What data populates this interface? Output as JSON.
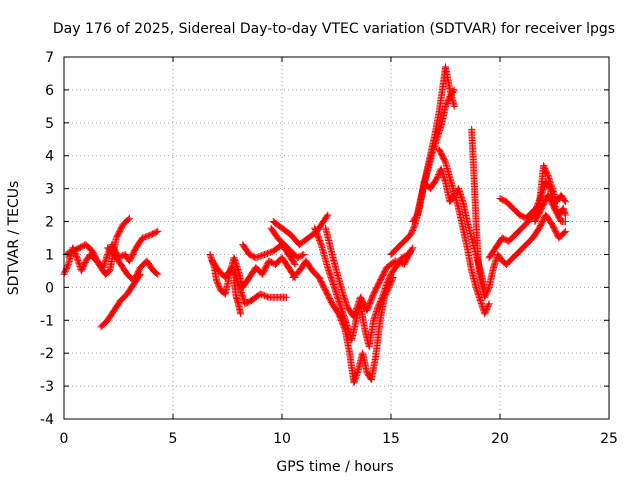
{
  "chart_data": {
    "type": "scatter",
    "title": "Day 176 of 2025, Sidereal Day-to-day VTEC variation (SDTVAR) for receiver lpgs",
    "xlabel": "GPS time / hours",
    "ylabel": "SDTVAR / TECUs",
    "xlim": [
      0,
      25
    ],
    "ylim": [
      -4,
      7
    ],
    "xticks": [
      "0",
      "5",
      "10",
      "15",
      "20",
      "25"
    ],
    "yticks": [
      "-4",
      "-3",
      "-2",
      "-1",
      "0",
      "1",
      "2",
      "3",
      "4",
      "5",
      "6",
      "7"
    ],
    "grid": true,
    "marker": "+",
    "color": "#ff0000",
    "trace_segments": [
      [
        [
          0.0,
          0.4
        ],
        [
          0.2,
          0.7
        ],
        [
          0.4,
          1.2
        ],
        [
          0.6,
          0.9
        ],
        [
          0.8,
          0.5
        ],
        [
          1.0,
          0.8
        ],
        [
          1.2,
          1.0
        ],
        [
          1.5,
          0.8
        ],
        [
          1.8,
          0.6
        ],
        [
          2.0,
          1.0
        ],
        [
          2.2,
          1.3
        ],
        [
          2.5,
          0.9
        ],
        [
          2.8,
          1.0
        ],
        [
          3.0,
          0.8
        ],
        [
          3.3,
          1.2
        ],
        [
          3.6,
          1.5
        ],
        [
          4.0,
          1.6
        ],
        [
          4.3,
          1.7
        ]
      ],
      [
        [
          0.1,
          1.0
        ],
        [
          0.4,
          1.1
        ],
        [
          0.7,
          1.2
        ],
        [
          1.0,
          1.3
        ],
        [
          1.3,
          1.1
        ],
        [
          1.6,
          0.7
        ],
        [
          1.9,
          0.4
        ],
        [
          2.1,
          0.5
        ],
        [
          2.4,
          1.5
        ],
        [
          2.7,
          1.9
        ],
        [
          3.0,
          2.1
        ]
      ],
      [
        [
          2.0,
          1.2
        ],
        [
          2.3,
          1.0
        ],
        [
          2.6,
          0.7
        ],
        [
          2.9,
          0.4
        ],
        [
          3.2,
          0.2
        ],
        [
          3.5,
          0.6
        ],
        [
          3.8,
          0.8
        ],
        [
          4.1,
          0.5
        ],
        [
          4.3,
          0.4
        ]
      ],
      [
        [
          1.7,
          -1.2
        ],
        [
          2.0,
          -1.0
        ],
        [
          2.3,
          -0.7
        ],
        [
          2.6,
          -0.4
        ],
        [
          2.9,
          -0.2
        ],
        [
          3.2,
          0.1
        ],
        [
          3.5,
          0.4
        ]
      ],
      [
        [
          6.7,
          1.0
        ],
        [
          6.9,
          0.6
        ],
        [
          7.0,
          0.2
        ],
        [
          7.2,
          -0.1
        ],
        [
          7.4,
          -0.2
        ],
        [
          7.6,
          0.4
        ],
        [
          7.8,
          0.9
        ],
        [
          8.0,
          0.5
        ],
        [
          8.2,
          0.0
        ],
        [
          8.5,
          0.3
        ],
        [
          8.8,
          0.6
        ],
        [
          9.1,
          0.4
        ],
        [
          9.4,
          0.8
        ],
        [
          9.7,
          0.7
        ],
        [
          10.0,
          0.9
        ],
        [
          10.3,
          0.6
        ],
        [
          10.6,
          0.3
        ]
      ],
      [
        [
          6.8,
          0.8
        ],
        [
          7.1,
          0.5
        ],
        [
          7.4,
          0.3
        ],
        [
          7.7,
          0.6
        ],
        [
          8.0,
          0.1
        ],
        [
          8.3,
          -0.5
        ],
        [
          8.6,
          -0.4
        ],
        [
          9.0,
          -0.2
        ],
        [
          9.4,
          -0.3
        ],
        [
          9.8,
          -0.3
        ],
        [
          10.2,
          -0.3
        ]
      ],
      [
        [
          7.8,
          0.2
        ],
        [
          7.9,
          -0.3
        ],
        [
          8.0,
          -0.5
        ],
        [
          8.1,
          -0.8
        ]
      ],
      [
        [
          8.2,
          1.3
        ],
        [
          8.5,
          1.0
        ],
        [
          8.8,
          0.9
        ],
        [
          9.2,
          1.0
        ],
        [
          9.6,
          1.1
        ],
        [
          10.0,
          1.3
        ],
        [
          10.3,
          1.0
        ],
        [
          10.6,
          0.7
        ]
      ],
      [
        [
          9.5,
          1.8
        ],
        [
          9.8,
          1.5
        ],
        [
          10.1,
          1.3
        ],
        [
          10.4,
          1.1
        ],
        [
          10.7,
          0.9
        ],
        [
          11.0,
          1.0
        ]
      ],
      [
        [
          9.6,
          2.0
        ],
        [
          10.0,
          1.8
        ],
        [
          10.4,
          1.6
        ],
        [
          10.8,
          1.3
        ],
        [
          11.2,
          1.5
        ],
        [
          11.6,
          1.7
        ],
        [
          11.9,
          2.0
        ],
        [
          12.1,
          2.2
        ]
      ],
      [
        [
          10.5,
          0.3
        ],
        [
          10.8,
          0.5
        ],
        [
          11.1,
          0.8
        ],
        [
          11.4,
          0.5
        ],
        [
          11.7,
          0.3
        ],
        [
          12.0,
          -0.1
        ],
        [
          12.3,
          -0.5
        ],
        [
          12.6,
          -0.8
        ],
        [
          12.9,
          -1.3
        ],
        [
          13.1,
          -2.0
        ],
        [
          13.3,
          -2.9
        ],
        [
          13.5,
          -2.5
        ],
        [
          13.7,
          -2.0
        ],
        [
          13.9,
          -2.6
        ],
        [
          14.1,
          -2.8
        ],
        [
          14.3,
          -2.1
        ],
        [
          14.5,
          -1.0
        ],
        [
          14.7,
          -0.3
        ],
        [
          14.9,
          0.0
        ],
        [
          15.1,
          0.3
        ]
      ],
      [
        [
          11.5,
          1.8
        ],
        [
          11.8,
          1.3
        ],
        [
          12.1,
          0.6
        ],
        [
          12.4,
          0.0
        ],
        [
          12.7,
          -0.6
        ],
        [
          13.0,
          -1.2
        ],
        [
          13.2,
          -1.6
        ],
        [
          13.4,
          -1.0
        ],
        [
          13.6,
          -0.5
        ],
        [
          13.8,
          -1.3
        ],
        [
          14.0,
          -1.8
        ],
        [
          14.2,
          -1.0
        ],
        [
          14.4,
          -0.6
        ],
        [
          14.6,
          -0.3
        ],
        [
          14.8,
          0.1
        ],
        [
          15.0,
          0.4
        ],
        [
          15.2,
          0.6
        ],
        [
          15.5,
          0.9
        ],
        [
          15.8,
          1.0
        ],
        [
          16.0,
          1.2
        ]
      ],
      [
        [
          12.0,
          1.8
        ],
        [
          12.3,
          1.0
        ],
        [
          12.5,
          0.5
        ],
        [
          12.8,
          -0.2
        ],
        [
          13.0,
          -0.6
        ],
        [
          13.3,
          -0.9
        ],
        [
          13.6,
          -0.3
        ],
        [
          13.9,
          -0.7
        ],
        [
          14.2,
          -0.2
        ],
        [
          14.5,
          0.2
        ],
        [
          14.8,
          0.6
        ],
        [
          15.2,
          0.8
        ],
        [
          15.6,
          0.7
        ],
        [
          15.9,
          1.1
        ]
      ],
      [
        [
          15.0,
          1.0
        ],
        [
          15.3,
          1.2
        ],
        [
          15.6,
          1.4
        ],
        [
          15.9,
          1.6
        ],
        [
          16.1,
          1.9
        ],
        [
          16.3,
          2.4
        ],
        [
          16.5,
          3.1
        ],
        [
          16.7,
          3.6
        ],
        [
          16.9,
          4.1
        ],
        [
          17.1,
          4.5
        ],
        [
          17.3,
          4.9
        ],
        [
          17.5,
          5.5
        ],
        [
          17.7,
          5.8
        ],
        [
          17.9,
          6.0
        ]
      ],
      [
        [
          16.0,
          2.0
        ],
        [
          16.2,
          2.2
        ],
        [
          16.4,
          2.8
        ],
        [
          16.6,
          3.4
        ],
        [
          16.8,
          4.0
        ],
        [
          17.0,
          4.6
        ],
        [
          17.2,
          5.3
        ],
        [
          17.4,
          6.2
        ],
        [
          17.5,
          6.7
        ],
        [
          17.7,
          6.0
        ],
        [
          17.9,
          5.5
        ]
      ],
      [
        [
          16.5,
          3.2
        ],
        [
          16.8,
          3.0
        ],
        [
          17.1,
          3.3
        ],
        [
          17.3,
          3.6
        ],
        [
          17.5,
          3.2
        ],
        [
          17.7,
          2.6
        ],
        [
          17.9,
          2.8
        ],
        [
          18.1,
          3.0
        ],
        [
          18.3,
          2.6
        ],
        [
          18.5,
          2.0
        ],
        [
          18.7,
          1.5
        ],
        [
          18.9,
          1.0
        ],
        [
          19.1,
          0.5
        ],
        [
          19.3,
          0.0
        ]
      ],
      [
        [
          17.2,
          4.2
        ],
        [
          17.5,
          3.8
        ],
        [
          17.8,
          3.1
        ],
        [
          18.1,
          2.4
        ],
        [
          18.3,
          1.8
        ],
        [
          18.5,
          1.2
        ],
        [
          18.7,
          0.5
        ],
        [
          18.9,
          0.0
        ],
        [
          19.1,
          -0.4
        ],
        [
          19.3,
          -0.8
        ],
        [
          19.5,
          -0.5
        ]
      ],
      [
        [
          18.7,
          4.8
        ],
        [
          18.8,
          3.5
        ],
        [
          18.9,
          2.0
        ],
        [
          19.0,
          0.8
        ],
        [
          19.1,
          0.2
        ],
        [
          19.3,
          -0.3
        ],
        [
          19.5,
          0.0
        ],
        [
          19.7,
          0.6
        ],
        [
          19.9,
          1.0
        ],
        [
          20.1,
          0.8
        ],
        [
          20.3,
          0.7
        ],
        [
          20.6,
          0.9
        ],
        [
          20.9,
          1.1
        ],
        [
          21.2,
          1.3
        ],
        [
          21.5,
          1.5
        ],
        [
          21.8,
          1.8
        ],
        [
          22.1,
          2.2
        ],
        [
          22.4,
          1.9
        ],
        [
          22.7,
          1.5
        ],
        [
          23.0,
          1.7
        ]
      ],
      [
        [
          19.5,
          0.9
        ],
        [
          19.8,
          1.2
        ],
        [
          20.1,
          1.5
        ],
        [
          20.4,
          1.4
        ],
        [
          20.7,
          1.6
        ],
        [
          21.0,
          1.8
        ],
        [
          21.3,
          2.0
        ],
        [
          21.6,
          2.3
        ],
        [
          21.9,
          2.8
        ],
        [
          22.1,
          3.2
        ],
        [
          22.3,
          3.0
        ],
        [
          22.5,
          2.5
        ],
        [
          22.7,
          2.2
        ],
        [
          22.9,
          2.4
        ],
        [
          23.0,
          2.2
        ]
      ],
      [
        [
          20.0,
          2.7
        ],
        [
          20.3,
          2.6
        ],
        [
          20.6,
          2.4
        ],
        [
          20.9,
          2.2
        ],
        [
          21.2,
          2.1
        ],
        [
          21.5,
          2.3
        ],
        [
          21.8,
          2.5
        ],
        [
          22.0,
          3.7
        ],
        [
          22.2,
          3.4
        ],
        [
          22.4,
          3.0
        ],
        [
          22.6,
          2.6
        ],
        [
          22.8,
          2.8
        ],
        [
          23.0,
          2.6
        ]
      ],
      [
        [
          21.6,
          2.0
        ],
        [
          21.9,
          2.4
        ],
        [
          22.2,
          2.8
        ],
        [
          22.5,
          2.4
        ],
        [
          22.8,
          2.0
        ],
        [
          23.0,
          2.0
        ]
      ]
    ]
  }
}
